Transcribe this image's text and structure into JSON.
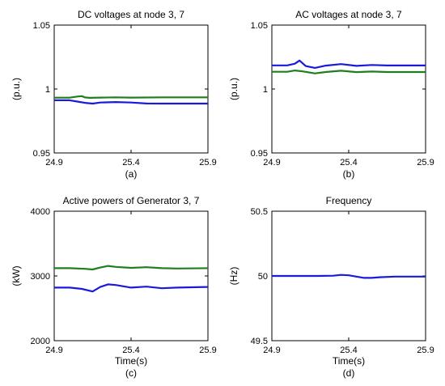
{
  "colors": {
    "blue": "#1a1adb",
    "green": "#1f7f1f",
    "axis": "#000000",
    "background": "#ffffff"
  },
  "chart_data": [
    {
      "id": "a",
      "type": "line",
      "title": "DC voltages at node 3, 7",
      "xlabel": "",
      "ylabel": "(p.u.)",
      "sublabel": "(a)",
      "xlim": [
        24.9,
        25.9
      ],
      "ylim": [
        0.95,
        1.05
      ],
      "xticks": [
        "24.9",
        "25.4",
        "25.9"
      ],
      "yticks": [
        "0.95",
        "1",
        "1.05"
      ],
      "grid": false,
      "series": [
        {
          "color": "green",
          "x": [
            24.9,
            25.0,
            25.05,
            25.08,
            25.1,
            25.13,
            25.2,
            25.3,
            25.4,
            25.6,
            25.9
          ],
          "y": [
            0.9932,
            0.9932,
            0.9941,
            0.9944,
            0.9934,
            0.9931,
            0.9933,
            0.9935,
            0.9933,
            0.9935,
            0.9935
          ]
        },
        {
          "color": "blue",
          "x": [
            24.9,
            25.0,
            25.05,
            25.1,
            25.15,
            25.2,
            25.3,
            25.4,
            25.5,
            25.6,
            25.9
          ],
          "y": [
            0.9912,
            0.9912,
            0.9902,
            0.9892,
            0.9886,
            0.9894,
            0.9898,
            0.9894,
            0.9887,
            0.9886,
            0.9886
          ]
        }
      ]
    },
    {
      "id": "b",
      "type": "line",
      "title": "AC voltages at node 3, 7",
      "xlabel": "",
      "ylabel": "(p.u.)",
      "sublabel": "(b)",
      "xlim": [
        24.9,
        25.9
      ],
      "ylim": [
        0.95,
        1.05
      ],
      "xticks": [
        "24.9",
        "25.4",
        "25.9"
      ],
      "yticks": [
        "0.95",
        "1",
        "1.05"
      ],
      "grid": false,
      "series": [
        {
          "color": "blue",
          "x": [
            24.9,
            25.0,
            25.05,
            25.08,
            25.12,
            25.18,
            25.25,
            25.35,
            25.45,
            25.55,
            25.65,
            25.9
          ],
          "y": [
            1.0185,
            1.0185,
            1.0198,
            1.0223,
            1.018,
            1.0165,
            1.0183,
            1.0195,
            1.0181,
            1.0188,
            1.0184,
            1.0184
          ]
        },
        {
          "color": "green",
          "x": [
            24.9,
            25.0,
            25.05,
            25.1,
            25.18,
            25.25,
            25.35,
            25.45,
            25.55,
            25.65,
            25.9
          ],
          "y": [
            1.0135,
            1.0135,
            1.0145,
            1.0138,
            1.0122,
            1.0133,
            1.0143,
            1.0132,
            1.0137,
            1.0133,
            1.0133
          ]
        }
      ]
    },
    {
      "id": "c",
      "type": "line",
      "title": "Active powers of Generator 3, 7",
      "xlabel": "Time(s)",
      "ylabel": "(kW)",
      "sublabel": "(c)",
      "xlim": [
        24.9,
        25.9
      ],
      "ylim": [
        2000,
        4000
      ],
      "xticks": [
        "24.9",
        "25.4",
        "25.9"
      ],
      "yticks": [
        "2000",
        "3000",
        "4000"
      ],
      "grid": false,
      "series": [
        {
          "color": "green",
          "x": [
            24.9,
            25.0,
            25.1,
            25.15,
            25.2,
            25.25,
            25.3,
            25.4,
            25.5,
            25.6,
            25.7,
            25.9
          ],
          "y": [
            3120,
            3120,
            3110,
            3100,
            3130,
            3155,
            3140,
            3125,
            3135,
            3120,
            3115,
            3120
          ]
        },
        {
          "color": "blue",
          "x": [
            24.9,
            25.0,
            25.08,
            25.15,
            25.2,
            25.25,
            25.3,
            25.4,
            25.5,
            25.6,
            25.7,
            25.9
          ],
          "y": [
            2820,
            2820,
            2800,
            2760,
            2830,
            2870,
            2860,
            2820,
            2835,
            2810,
            2820,
            2830
          ]
        }
      ]
    },
    {
      "id": "d",
      "type": "line",
      "title": "Frequency",
      "xlabel": "Time(s)",
      "ylabel": "(Hz)",
      "sublabel": "(d)",
      "xlim": [
        24.9,
        25.9
      ],
      "ylim": [
        49.5,
        50.5
      ],
      "xticks": [
        "24.9",
        "25.4",
        "25.9"
      ],
      "yticks": [
        "49.5",
        "50",
        "50.5"
      ],
      "grid": false,
      "series": [
        {
          "color": "blue",
          "x": [
            24.9,
            25.2,
            25.3,
            25.35,
            25.4,
            25.45,
            25.5,
            25.55,
            25.6,
            25.7,
            25.9
          ],
          "y": [
            50.0,
            50.0,
            50.002,
            50.008,
            50.005,
            49.995,
            49.985,
            49.985,
            49.99,
            49.995,
            49.995
          ]
        }
      ]
    }
  ]
}
